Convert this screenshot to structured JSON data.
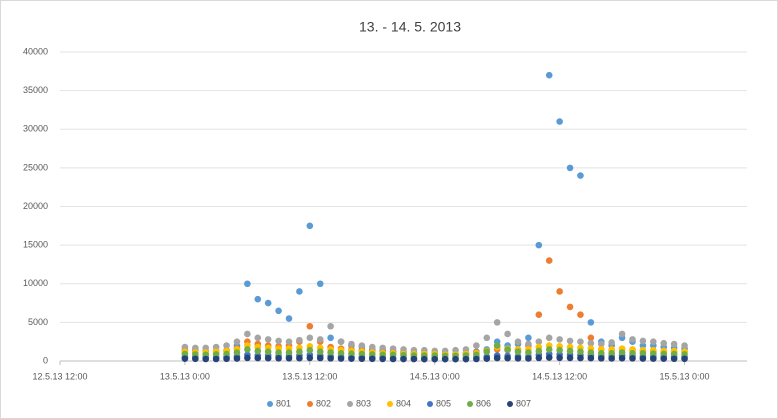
{
  "chart_data": {
    "type": "scatter",
    "title": "13. - 14. 5. 2013",
    "x": [
      41407,
      41407.0417,
      41407.0833,
      41407.125,
      41407.1667,
      41407.2083,
      41407.25,
      41407.2917,
      41407.3333,
      41407.375,
      41407.4167,
      41407.4583,
      41407.5,
      41407.5417,
      41407.5833,
      41407.625,
      41407.6667,
      41407.7083,
      41407.75,
      41407.7917,
      41407.8333,
      41407.875,
      41407.9167,
      41407.9583,
      41408,
      41408.0417,
      41408.0833,
      41408.125,
      41408.1667,
      41408.2083,
      41408.25,
      41408.2917,
      41408.3333,
      41408.375,
      41408.4167,
      41408.4583,
      41408.5,
      41408.5417,
      41408.5833,
      41408.625,
      41408.6667,
      41408.7083,
      41408.75,
      41408.7917,
      41408.8333,
      41408.875,
      41408.9167,
      41408.9583,
      41409
    ],
    "series": [
      {
        "name": "801",
        "color": "#5b9bd5",
        "values": [
          1200,
          1100,
          1000,
          1100,
          1300,
          2000,
          10000,
          8000,
          7500,
          6500,
          5500,
          9000,
          17500,
          10000,
          3000,
          2500,
          2000,
          1800,
          1500,
          1400,
          1200,
          1100,
          1000,
          900,
          1000,
          900,
          800,
          1000,
          1200,
          1500,
          2500,
          2000,
          2200,
          3000,
          15000,
          37000,
          31000,
          25000,
          24000,
          5000,
          2500,
          2000,
          3000,
          2500,
          2000,
          2000,
          1800,
          1700,
          1600
        ]
      },
      {
        "name": "802",
        "color": "#ed7d31",
        "values": [
          1500,
          1400,
          1300,
          1300,
          1400,
          1600,
          2500,
          2200,
          2000,
          1900,
          2000,
          2500,
          4500,
          2500,
          1800,
          1600,
          1500,
          1400,
          1300,
          1200,
          1200,
          1100,
          1100,
          1000,
          1000,
          900,
          900,
          1000,
          1100,
          1300,
          1500,
          1400,
          1500,
          2000,
          6000,
          13000,
          9000,
          7000,
          6000,
          3000,
          1500,
          1400,
          1500,
          1400,
          1300,
          1300,
          1200,
          1200,
          1200
        ]
      },
      {
        "name": "803",
        "color": "#a5a5a5",
        "values": [
          1800,
          1700,
          1700,
          1800,
          2000,
          2500,
          3500,
          3000,
          2800,
          2600,
          2500,
          2700,
          3000,
          2800,
          4500,
          2500,
          2200,
          2000,
          1800,
          1700,
          1600,
          1500,
          1400,
          1400,
          1300,
          1300,
          1400,
          1500,
          2000,
          3000,
          5000,
          3500,
          2500,
          2200,
          2500,
          3000,
          2800,
          2600,
          2500,
          2300,
          2200,
          2400,
          3500,
          2800,
          2600,
          2500,
          2300,
          2200,
          2000
        ]
      },
      {
        "name": "804",
        "color": "#ffc000",
        "values": [
          1200,
          1100,
          1100,
          1200,
          1300,
          1500,
          2000,
          1800,
          1700,
          1600,
          1600,
          1700,
          1900,
          1700,
          1500,
          1400,
          1300,
          1200,
          1100,
          1000,
          1000,
          900,
          900,
          900,
          900,
          800,
          800,
          900,
          1000,
          1300,
          1800,
          1600,
          1500,
          1500,
          1800,
          2000,
          1900,
          1800,
          1700,
          1600,
          1500,
          1500,
          1600,
          1500,
          1400,
          1400,
          1300,
          1300,
          1200
        ]
      },
      {
        "name": "805",
        "color": "#4472c4",
        "values": [
          500,
          500,
          450,
          450,
          500,
          600,
          800,
          700,
          700,
          650,
          650,
          700,
          800,
          700,
          600,
          550,
          500,
          500,
          450,
          450,
          400,
          400,
          400,
          400,
          400,
          350,
          350,
          400,
          450,
          550,
          700,
          650,
          600,
          600,
          800,
          900,
          850,
          800,
          750,
          700,
          650,
          650,
          700,
          650,
          600,
          600,
          550,
          550,
          500
        ]
      },
      {
        "name": "806",
        "color": "#70ad47",
        "values": [
          900,
          850,
          800,
          850,
          900,
          1100,
          1500,
          1300,
          1200,
          1100,
          1100,
          1200,
          1400,
          1200,
          1100,
          1000,
          950,
          900,
          850,
          800,
          800,
          750,
          700,
          700,
          700,
          650,
          650,
          700,
          800,
          1200,
          2000,
          1500,
          1200,
          1100,
          1300,
          1500,
          1400,
          1300,
          1200,
          1100,
          1000,
          1000,
          1100,
          1000,
          1000,
          950,
          900,
          900,
          850
        ]
      },
      {
        "name": "807",
        "color": "#264478",
        "values": [
          300,
          280,
          260,
          260,
          280,
          320,
          400,
          380,
          360,
          350,
          350,
          360,
          400,
          380,
          340,
          320,
          300,
          290,
          280,
          270,
          260,
          250,
          250,
          240,
          240,
          230,
          230,
          240,
          260,
          300,
          380,
          360,
          340,
          330,
          400,
          450,
          420,
          400,
          380,
          360,
          340,
          330,
          350,
          340,
          320,
          310,
          300,
          290,
          280
        ]
      }
    ],
    "xlim": [
      41406.5,
      41409.25
    ],
    "xticks": [
      {
        "value": 41406.5,
        "label": "12.5.13 12:00"
      },
      {
        "value": 41407,
        "label": "13.5.13 0:00"
      },
      {
        "value": 41407.5,
        "label": "13.5.13 12:00"
      },
      {
        "value": 41408,
        "label": "14.5.13 0:00"
      },
      {
        "value": 41408.5,
        "label": "14.5.13 12:00"
      },
      {
        "value": 41409,
        "label": "15.5.13 0:00"
      }
    ],
    "ylim": [
      0,
      40000
    ],
    "yticks": [
      0,
      5000,
      10000,
      15000,
      20000,
      25000,
      30000,
      35000,
      40000
    ],
    "grid": true,
    "legend": "bottom"
  }
}
